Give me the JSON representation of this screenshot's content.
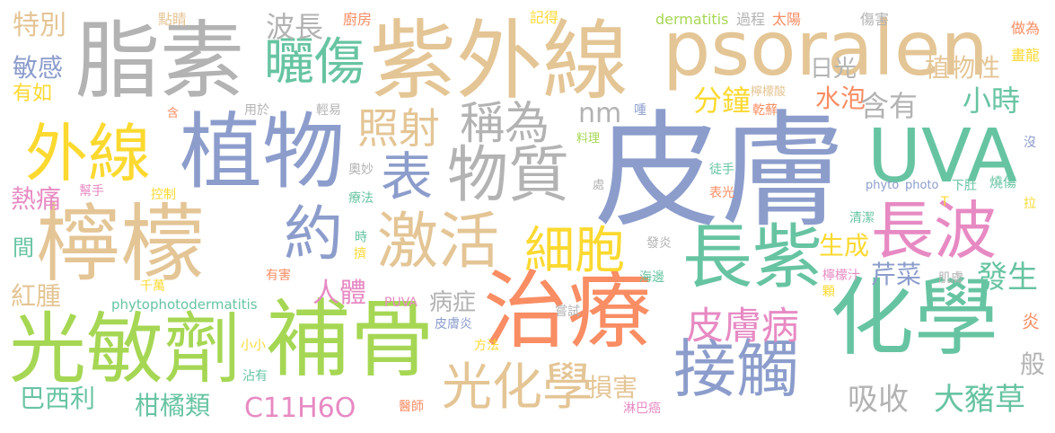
{
  "colors": {
    "blue": "#8c9dcc",
    "orange": "#f98d63",
    "green": "#67c4a2",
    "pink": "#e78ac3",
    "lime": "#a6d754",
    "yellow": "#fcd930",
    "tan": "#e4c595",
    "gray": "#b3b3b3"
  },
  "words": [
    {
      "text": "皮膚",
      "color": "blue"
    },
    {
      "text": "紫外線",
      "color": "tan"
    },
    {
      "text": "psoralen",
      "color": "tan"
    },
    {
      "text": "脂素",
      "color": "gray"
    },
    {
      "text": "檸檬",
      "color": "tan"
    },
    {
      "text": "植物",
      "color": "blue"
    },
    {
      "text": "治療",
      "color": "orange"
    },
    {
      "text": "化學",
      "color": "green"
    },
    {
      "text": "補骨",
      "color": "lime"
    },
    {
      "text": "光敏劑",
      "color": "lime"
    },
    {
      "text": "外線",
      "color": "yellow"
    },
    {
      "text": "UVA",
      "color": "green"
    },
    {
      "text": "長紫",
      "color": "green"
    },
    {
      "text": "長波",
      "color": "pink"
    },
    {
      "text": "物質",
      "color": "gray"
    },
    {
      "text": "激活",
      "color": "tan"
    },
    {
      "text": "接觸",
      "color": "blue"
    },
    {
      "text": "光化學",
      "color": "tan"
    },
    {
      "text": "曬傷",
      "color": "green"
    },
    {
      "text": "細胞",
      "color": "yellow"
    },
    {
      "text": "約",
      "color": "blue"
    },
    {
      "text": "表",
      "color": "blue"
    },
    {
      "text": "稱為",
      "color": "gray"
    },
    {
      "text": "照射",
      "color": "tan"
    },
    {
      "text": "皮膚病",
      "color": "pink"
    },
    {
      "text": "波長",
      "color": "gray"
    },
    {
      "text": "nm",
      "color": "gray"
    },
    {
      "text": "分鐘",
      "color": "yellow"
    },
    {
      "text": "水泡",
      "color": "orange"
    },
    {
      "text": "含有",
      "color": "gray"
    },
    {
      "text": "小時",
      "color": "green"
    },
    {
      "text": "日光",
      "color": "gray"
    },
    {
      "text": "植物性",
      "color": "tan"
    },
    {
      "text": "特別",
      "color": "tan"
    },
    {
      "text": "敏感",
      "color": "blue"
    },
    {
      "text": "有如",
      "color": "yellow"
    },
    {
      "text": "熱痛",
      "color": "pink"
    },
    {
      "text": "間",
      "color": "green"
    },
    {
      "text": "紅腫",
      "color": "tan"
    },
    {
      "text": "人體",
      "color": "pink"
    },
    {
      "text": "生成",
      "color": "yellow"
    },
    {
      "text": "芹菜",
      "color": "blue"
    },
    {
      "text": "發生",
      "color": "green"
    },
    {
      "text": "肌膚",
      "color": "gray"
    },
    {
      "text": "病症",
      "color": "gray"
    },
    {
      "text": "巴西利",
      "color": "green"
    },
    {
      "text": "柑橘類",
      "color": "green"
    },
    {
      "text": "C11H6O",
      "color": "pink"
    },
    {
      "text": "損害",
      "color": "tan"
    },
    {
      "text": "吸收",
      "color": "gray"
    },
    {
      "text": "大豬草",
      "color": "green"
    },
    {
      "text": "般",
      "color": "gray"
    },
    {
      "text": "炎",
      "color": "orange"
    },
    {
      "text": "點睛",
      "color": "tan"
    },
    {
      "text": "廚房",
      "color": "orange"
    },
    {
      "text": "記得",
      "color": "yellow"
    },
    {
      "text": "dermatitis",
      "color": "lime"
    },
    {
      "text": "過程",
      "color": "gray"
    },
    {
      "text": "太陽",
      "color": "orange"
    },
    {
      "text": "傷害",
      "color": "gray"
    },
    {
      "text": "做為",
      "color": "orange"
    },
    {
      "text": "畫龍",
      "color": "yellow"
    },
    {
      "text": "含",
      "color": "orange"
    },
    {
      "text": "用於",
      "color": "gray"
    },
    {
      "text": "輕易",
      "color": "gray"
    },
    {
      "text": "喠",
      "color": "blue"
    },
    {
      "text": "檸檬酸",
      "color": "tan"
    },
    {
      "text": "乾蘚",
      "color": "orange"
    },
    {
      "text": "料理",
      "color": "lime"
    },
    {
      "text": "沒",
      "color": "blue"
    },
    {
      "text": "奧妙",
      "color": "gray"
    },
    {
      "text": "處",
      "color": "gray"
    },
    {
      "text": "徒手",
      "color": "green"
    },
    {
      "text": "幫手",
      "color": "pink"
    },
    {
      "text": "控制",
      "color": "yellow"
    },
    {
      "text": "療法",
      "color": "green"
    },
    {
      "text": "表光",
      "color": "orange"
    },
    {
      "text": "phyto",
      "color": "blue"
    },
    {
      "text": "photo",
      "color": "blue"
    },
    {
      "text": "下肚",
      "color": "green"
    },
    {
      "text": "燒傷",
      "color": "green"
    },
    {
      "text": "拉",
      "color": "yellow"
    },
    {
      "text": "T",
      "color": "yellow"
    },
    {
      "text": "清潔",
      "color": "green"
    },
    {
      "text": "時",
      "color": "green"
    },
    {
      "text": "擠",
      "color": "yellow"
    },
    {
      "text": "發炎",
      "color": "gray"
    },
    {
      "text": "有害",
      "color": "orange"
    },
    {
      "text": "海邊",
      "color": "green"
    },
    {
      "text": "檸檬汁",
      "color": "pink"
    },
    {
      "text": "顆",
      "color": "yellow"
    },
    {
      "text": "千萬",
      "color": "yellow"
    },
    {
      "text": "phytophotodermatitis",
      "color": "green"
    },
    {
      "text": "PUVA",
      "color": "pink"
    },
    {
      "text": "嘗試",
      "color": "gray"
    },
    {
      "text": "皮膚炎",
      "color": "blue"
    },
    {
      "text": "小小",
      "color": "yellow"
    },
    {
      "text": "方法",
      "color": "yellow"
    },
    {
      "text": "沾有",
      "color": "green"
    },
    {
      "text": "醫師",
      "color": "orange"
    },
    {
      "text": "淋巴癌",
      "color": "pink"
    }
  ]
}
